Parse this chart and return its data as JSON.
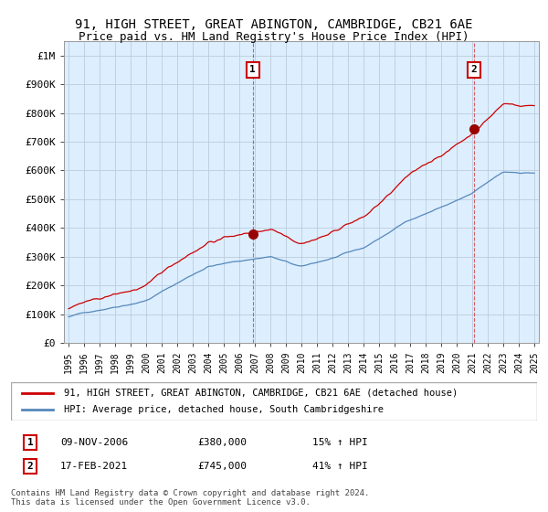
{
  "title": "91, HIGH STREET, GREAT ABINGTON, CAMBRIDGE, CB21 6AE",
  "subtitle": "Price paid vs. HM Land Registry's House Price Index (HPI)",
  "legend_line1": "91, HIGH STREET, GREAT ABINGTON, CAMBRIDGE, CB21 6AE (detached house)",
  "legend_line2": "HPI: Average price, detached house, South Cambridgeshire",
  "annotation1_label": "1",
  "annotation1_date": "09-NOV-2006",
  "annotation1_price": "£380,000",
  "annotation1_hpi": "15% ↑ HPI",
  "annotation1_year": 2006.87,
  "annotation1_value": 380000,
  "annotation2_label": "2",
  "annotation2_date": "17-FEB-2021",
  "annotation2_price": "£745,000",
  "annotation2_hpi": "41% ↑ HPI",
  "annotation2_year": 2021.12,
  "annotation2_value": 745000,
  "footer": "Contains HM Land Registry data © Crown copyright and database right 2024.\nThis data is licensed under the Open Government Licence v3.0.",
  "red_color": "#cc0000",
  "blue_color": "#5588bb",
  "chart_bg_color": "#ddeeff",
  "background_color": "#ffffff",
  "grid_color": "#bbccdd",
  "ylim": [
    0,
    1050000
  ],
  "yticks": [
    0,
    100000,
    200000,
    300000,
    400000,
    500000,
    600000,
    700000,
    800000,
    900000,
    1000000
  ],
  "ytick_labels": [
    "£0",
    "£100K",
    "£200K",
    "£300K",
    "£400K",
    "£500K",
    "£600K",
    "£700K",
    "£800K",
    "£900K",
    "£1M"
  ],
  "xlim_start": 1994.7,
  "xlim_end": 2025.3
}
